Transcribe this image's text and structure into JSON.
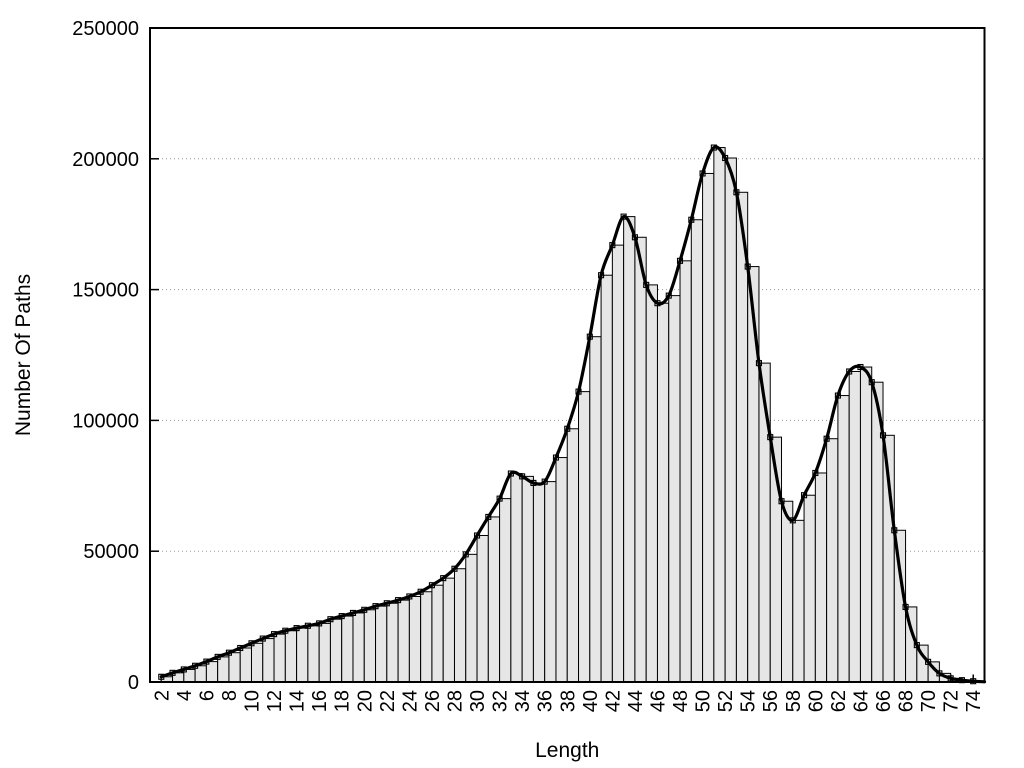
{
  "figure": {
    "background": "#ffffff"
  },
  "chart_data": {
    "type": "bar",
    "title": "",
    "xlabel": "Length",
    "ylabel": "Number Of Paths",
    "legend": "none",
    "grid": "dotted horizontal lines at each labeled y tick",
    "overlay": {
      "type": "smooth-spline-line",
      "through": "same data as bars",
      "marker": "small-open-square",
      "color": "#000000"
    },
    "bar_fill": "#e6e6e6",
    "bar_stroke": "#000000",
    "line_color": "#000000",
    "axis_color": "#000000",
    "grid_color": "#9a9a9a",
    "xlim": [
      1,
      75
    ],
    "ylim": [
      0,
      250000
    ],
    "categories": [
      2,
      3,
      4,
      5,
      6,
      7,
      8,
      9,
      10,
      11,
      12,
      13,
      14,
      15,
      16,
      17,
      18,
      19,
      20,
      21,
      22,
      23,
      24,
      25,
      26,
      27,
      28,
      29,
      30,
      31,
      32,
      33,
      34,
      35,
      36,
      37,
      38,
      39,
      40,
      41,
      42,
      43,
      44,
      45,
      46,
      47,
      48,
      49,
      50,
      51,
      52,
      53,
      54,
      55,
      56,
      57,
      58,
      59,
      60,
      61,
      62,
      63,
      64,
      65,
      66,
      67,
      68,
      69,
      70,
      71,
      72,
      73,
      74
    ],
    "values": [
      2000,
      3500,
      4800,
      6200,
      7800,
      9600,
      11200,
      13000,
      14800,
      16600,
      18300,
      19600,
      20600,
      21500,
      22400,
      24000,
      25200,
      26400,
      27600,
      29000,
      30100,
      31300,
      32700,
      34500,
      37000,
      39700,
      43300,
      48800,
      56000,
      63100,
      70100,
      79700,
      78600,
      76100,
      76600,
      85800,
      96800,
      111000,
      132000,
      155500,
      167000,
      177900,
      170000,
      151800,
      144800,
      147700,
      161000,
      176700,
      194400,
      204300,
      200300,
      187200,
      158800,
      121900,
      93600,
      69100,
      61800,
      71400,
      79900,
      93000,
      109500,
      118700,
      120400,
      114600,
      94300,
      58000,
      28700,
      14100,
      7700,
      3300,
      1400,
      700,
      300
    ],
    "x_tick_labels": [
      "2",
      "4",
      "6",
      "8",
      "10",
      "12",
      "14",
      "16",
      "18",
      "20",
      "22",
      "24",
      "26",
      "28",
      "30",
      "32",
      "34",
      "36",
      "38",
      "40",
      "42",
      "44",
      "46",
      "48",
      "50",
      "52",
      "54",
      "56",
      "58",
      "60",
      "62",
      "64",
      "66",
      "68",
      "70",
      "72",
      "74"
    ],
    "y_ticks": [
      0,
      50000,
      100000,
      150000,
      200000,
      250000
    ],
    "y_tick_labels": [
      "0",
      "50000",
      "100000",
      "150000",
      "200000",
      "250000"
    ]
  }
}
